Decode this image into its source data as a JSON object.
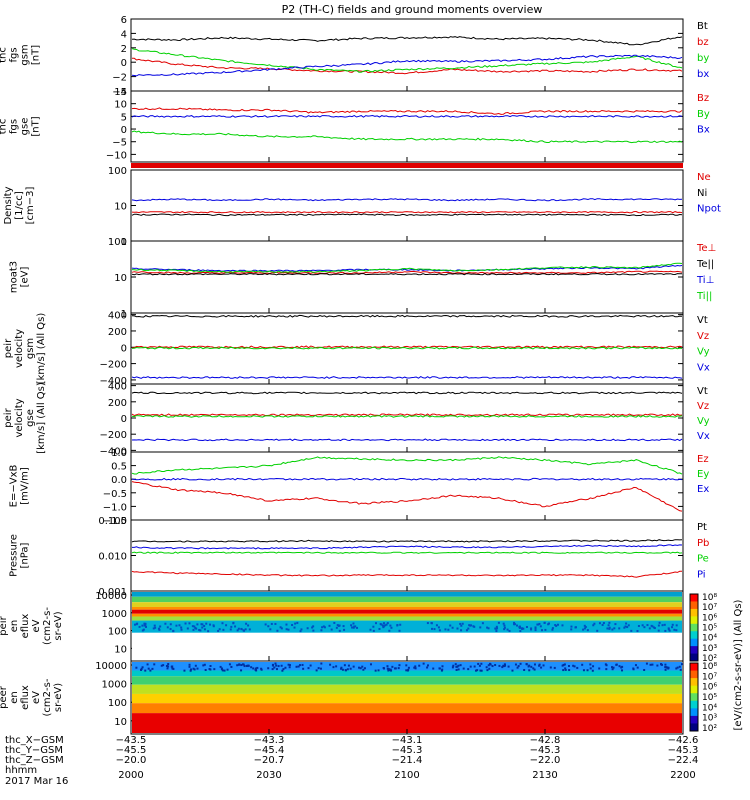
{
  "title": "P2 (TH-C) fields and ground moments overview",
  "date_label": "2017 Mar 16",
  "colors": {
    "black": "#000000",
    "red": "#e00000",
    "green": "#00d000",
    "blue": "#0000e0"
  },
  "colorbar": {
    "label": "[eV/(cm2-s-sr-eV)] (All Qs)",
    "ticks_top": [
      "10⁸",
      "10⁷",
      "10⁶",
      "10⁵",
      "10⁴",
      "10³",
      "10²"
    ],
    "ticks_bottom": [
      "10⁸",
      "10⁷",
      "10⁶",
      "10⁵",
      "10⁴",
      "10³",
      "10²"
    ]
  },
  "chart_data": {
    "type": "line",
    "x_ticks": [
      "2000",
      "2030",
      "2100",
      "2130",
      "2200"
    ],
    "x_unit_label": "hhmm",
    "ephemeris": [
      {
        "label": "thc_X−GSM",
        "values": [
          "−43.5",
          "−43.3",
          "−43.1",
          "−42.8",
          "−42.6"
        ]
      },
      {
        "label": "thc_Y−GSM",
        "values": [
          "−45.5",
          "−45.4",
          "−45.3",
          "−45.3",
          "−45.3"
        ]
      },
      {
        "label": "thc_Z−GSM",
        "values": [
          "−20.0",
          "−20.7",
          "−21.4",
          "−22.0",
          "−22.4"
        ]
      }
    ],
    "panels": [
      {
        "ylabel": "thc\nfgs\ngsm\n[nT]",
        "scale": "linear",
        "ylim": [
          -4,
          6
        ],
        "ticks": [
          "6",
          "4",
          "2",
          "0",
          "−2",
          "−4"
        ],
        "series": [
          {
            "name": "Bt",
            "color": "black",
            "values": [
              3.2,
              3.1,
              3.4,
              3.2,
              3.0,
              3.3,
              3.4,
              3.5,
              3.2,
              3.3,
              3.1,
              2.4,
              3.6
            ]
          },
          {
            "name": "bz",
            "color": "red",
            "values": [
              0.5,
              -0.3,
              -0.8,
              -0.9,
              -1.2,
              -1.3,
              -1.5,
              -1.0,
              -1.3,
              -1.2,
              -1.3,
              -1.0,
              -1.2
            ]
          },
          {
            "name": "by",
            "color": "green",
            "values": [
              1.8,
              1.0,
              0.2,
              -0.4,
              -1.0,
              -1.3,
              -1.0,
              -0.8,
              -0.5,
              -0.2,
              0.0,
              0.8,
              -0.8
            ]
          },
          {
            "name": "bx",
            "color": "blue",
            "values": [
              -1.8,
              -1.7,
              -1.4,
              -1.0,
              -0.6,
              -0.3,
              0.2,
              0.1,
              0.2,
              0.4,
              0.8,
              0.9,
              0.6
            ]
          }
        ]
      },
      {
        "ylabel": "thc\nfgs\ngse\n[nT]",
        "scale": "linear",
        "ylim": [
          -13,
          15
        ],
        "ticks": [
          "15",
          "10",
          "5",
          "0",
          "−5",
          "−10"
        ],
        "series": [
          {
            "name": "Bz",
            "color": "red",
            "values": [
              8,
              8,
              7.5,
              7.5,
              6.5,
              7,
              7,
              7,
              6,
              7,
              7,
              7,
              7
            ]
          },
          {
            "name": "By",
            "color": "green",
            "values": [
              -1,
              -2,
              -2,
              -3,
              -3,
              -4,
              -4,
              -4,
              -4,
              -5,
              -5,
              -5,
              -5
            ]
          },
          {
            "name": "Bx",
            "color": "blue",
            "values": [
              5,
              5,
              5,
              5,
              5,
              5,
              5,
              5,
              5,
              5,
              5,
              5,
              5
            ]
          }
        ]
      },
      {
        "ylabel": "Density\n[1/cc]\n[cm−3]",
        "scale": "log",
        "ylim": [
          1,
          100
        ],
        "ticks": [
          "100",
          "10",
          "1"
        ],
        "series": [
          {
            "name": "Ne",
            "color": "red",
            "values": [
              6.5,
              6.5,
              6.5,
              6.5,
              6.5,
              6.5,
              6.5,
              6.5,
              6.5,
              6.5,
              6.5,
              6.5,
              6.5
            ]
          },
          {
            "name": "Ni",
            "color": "black",
            "values": [
              5.5,
              5.6,
              5.4,
              5.5,
              5.5,
              5.6,
              5.4,
              5.5,
              5.6,
              5.5,
              5.5,
              5.4,
              5.5
            ]
          },
          {
            "name": "Npot",
            "color": "blue",
            "values": [
              14,
              15,
              14,
              15,
              14,
              15,
              15,
              14,
              15,
              14,
              15,
              15,
              15
            ]
          }
        ]
      },
      {
        "ylabel": "moat3\n[eV]",
        "scale": "log",
        "ylim": [
          1,
          100
        ],
        "ticks": [
          "100",
          "10",
          "1"
        ],
        "series": [
          {
            "name": "Te⊥",
            "color": "red",
            "values": [
              14,
              13,
              13,
              13,
              13,
              13,
              14,
              13,
              13,
              13,
              13,
              14,
              14
            ]
          },
          {
            "name": "Te||",
            "color": "black",
            "values": [
              12,
              12,
              12,
              12,
              12,
              12,
              12,
              12,
              12,
              12,
              12,
              12,
              12
            ]
          },
          {
            "name": "Ti⊥",
            "color": "blue",
            "values": [
              17,
              16,
              15,
              15,
              15,
              16,
              16,
              15,
              16,
              17,
              18,
              17,
              21
            ]
          },
          {
            "name": "Ti||",
            "color": "green",
            "values": [
              16,
              15,
              14,
              14,
              14,
              15,
              17,
              15,
              16,
              18,
              19,
              18,
              24
            ]
          }
        ]
      },
      {
        "ylabel": "thc\npeir\nvelocity\ngsm\n[km/s] (All Qs)",
        "scale": "linear",
        "ylim": [
          -450,
          420
        ],
        "ticks": [
          "400",
          "200",
          "0",
          "−200",
          "−400"
        ],
        "series": [
          {
            "name": "Vt",
            "color": "black",
            "values": [
              380,
              380,
              380,
              380,
              380,
              380,
              380,
              380,
              380,
              380,
              380,
              380,
              380
            ]
          },
          {
            "name": "Vz",
            "color": "red",
            "values": [
              5,
              5,
              5,
              5,
              5,
              5,
              5,
              5,
              5,
              5,
              5,
              5,
              5
            ]
          },
          {
            "name": "Vy",
            "color": "green",
            "values": [
              -10,
              -10,
              -10,
              -10,
              -10,
              -10,
              -10,
              -10,
              -10,
              -10,
              -10,
              -10,
              -10
            ]
          },
          {
            "name": "Vx",
            "color": "blue",
            "values": [
              -370,
              -370,
              -370,
              -370,
              -370,
              -370,
              -370,
              -370,
              -370,
              -370,
              -370,
              -370,
              -370
            ]
          }
        ]
      },
      {
        "ylabel": "thc\npeir\nvelocity\ngse\n[km/s] (All Qs)",
        "scale": "linear",
        "ylim": [
          -420,
          420
        ],
        "ticks": [
          "400",
          "200",
          "0",
          "−200",
          "−400"
        ],
        "series": [
          {
            "name": "Vt",
            "color": "black",
            "values": [
              310,
              310,
              310,
              310,
              310,
              310,
              310,
              310,
              310,
              310,
              310,
              310,
              310
            ]
          },
          {
            "name": "Vz",
            "color": "red",
            "values": [
              40,
              40,
              40,
              40,
              40,
              40,
              40,
              40,
              40,
              40,
              40,
              40,
              40
            ]
          },
          {
            "name": "Vy",
            "color": "green",
            "values": [
              20,
              20,
              20,
              20,
              20,
              20,
              20,
              20,
              20,
              20,
              20,
              20,
              20
            ]
          },
          {
            "name": "Vx",
            "color": "blue",
            "values": [
              -270,
              -270,
              -270,
              -270,
              -270,
              -270,
              -270,
              -270,
              -270,
              -270,
              -270,
              -270,
              -270
            ]
          }
        ]
      },
      {
        "ylabel": "E=−VxB\n[mV/m]",
        "scale": "linear",
        "ylim": [
          -1.5,
          1.0
        ],
        "ticks": [
          "1.0",
          "0.5",
          "0.0",
          "−0.5",
          "−1.0",
          "−1.5"
        ],
        "series": [
          {
            "name": "Ez",
            "color": "red",
            "values": [
              -0.1,
              -0.4,
              -0.5,
              -0.8,
              -0.7,
              -0.9,
              -0.8,
              -0.6,
              -0.7,
              -1.0,
              -0.7,
              -0.3,
              -1.2
            ]
          },
          {
            "name": "Ey",
            "color": "green",
            "values": [
              0.2,
              0.35,
              0.4,
              0.5,
              0.8,
              0.75,
              0.7,
              0.7,
              0.8,
              0.7,
              0.55,
              0.7,
              0.2
            ]
          },
          {
            "name": "Ex",
            "color": "blue",
            "values": [
              0,
              0,
              0,
              0,
              0,
              0,
              0,
              0,
              0,
              0,
              0,
              0,
              0
            ]
          }
        ]
      },
      {
        "ylabel": "Pressure\n[nPa]",
        "scale": "log",
        "ylim": [
          0.001,
          0.1
        ],
        "ticks": [
          "0.100",
          "0.010",
          "0.001"
        ],
        "series": [
          {
            "name": "Pt",
            "color": "black",
            "values": [
              0.025,
              0.025,
              0.025,
              0.025,
              0.026,
              0.025,
              0.025,
              0.025,
              0.025,
              0.026,
              0.026,
              0.026,
              0.028
            ]
          },
          {
            "name": "Pb",
            "color": "red",
            "values": [
              0.0035,
              0.0032,
              0.003,
              0.0028,
              0.0027,
              0.0028,
              0.0028,
              0.0028,
              0.0027,
              0.0028,
              0.0028,
              0.0025,
              0.0035
            ]
          },
          {
            "name": "Pe",
            "color": "green",
            "values": [
              0.012,
              0.012,
              0.012,
              0.012,
              0.012,
              0.012,
              0.012,
              0.012,
              0.012,
              0.012,
              0.012,
              0.012,
              0.012
            ]
          },
          {
            "name": "Pi",
            "color": "blue",
            "values": [
              0.017,
              0.016,
              0.016,
              0.016,
              0.016,
              0.017,
              0.018,
              0.017,
              0.017,
              0.018,
              0.019,
              0.018,
              0.02
            ]
          }
        ]
      },
      {
        "ylabel": "thc\npeir\nen\neflux\neV\n(cm2-s-\nsr-eV)",
        "type": "heatmap",
        "ticks": [
          "10000",
          "1000",
          "100",
          "10"
        ]
      },
      {
        "ylabel": "thc\npeer\nen\neflux\neV\n(cm2-s-\nsr-eV)",
        "type": "heatmap",
        "ticks": [
          "10000",
          "1000",
          "100",
          "10"
        ]
      }
    ]
  }
}
